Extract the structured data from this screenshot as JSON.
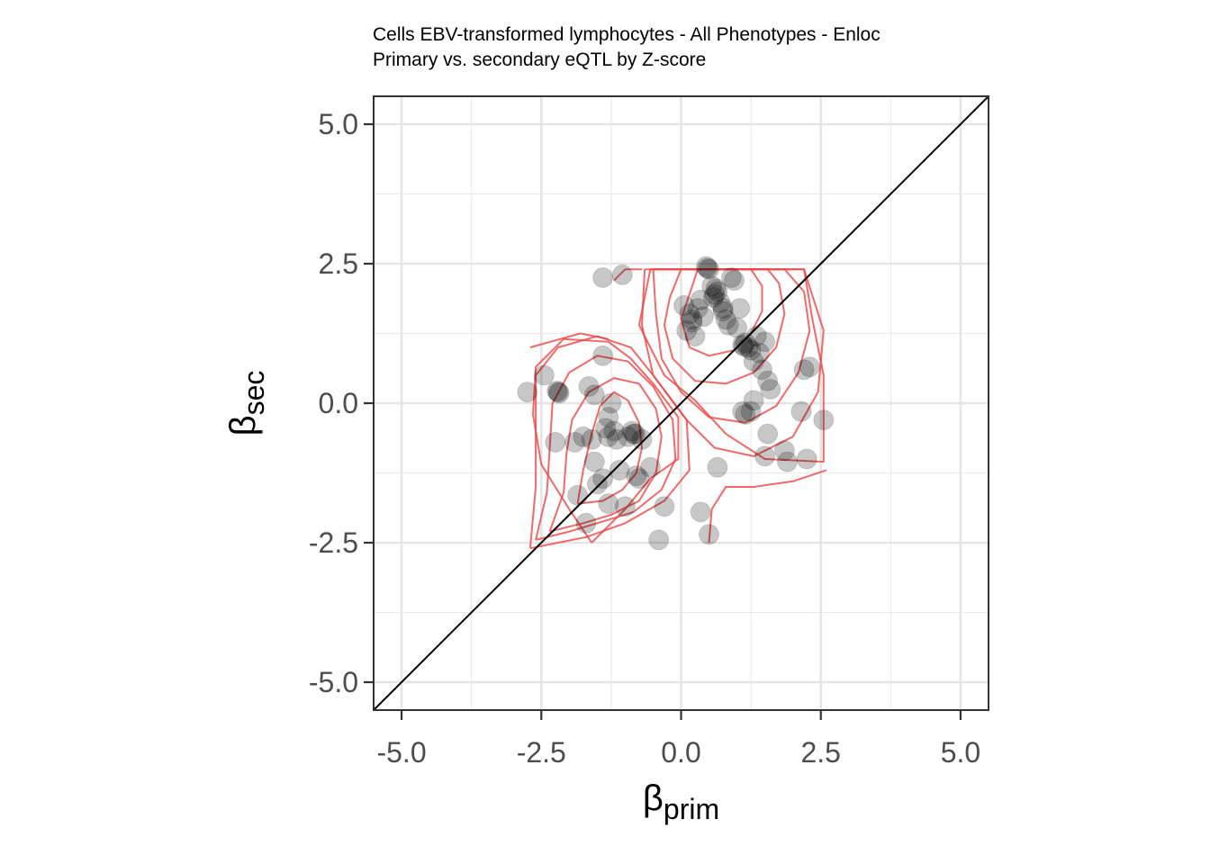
{
  "chart_data": {
    "type": "scatter",
    "title": "Cells EBV-transformed lymphocytes - All Phenotypes - Enloc",
    "subtitle": "Primary vs. secondary eQTL by Z-score",
    "xlabel": {
      "symbol": "β",
      "sub": "prim"
    },
    "ylabel": {
      "symbol": "β",
      "sub": "sec"
    },
    "xlim": [
      -5.5,
      5.5
    ],
    "ylim": [
      -5.5,
      5.5
    ],
    "x_ticks": [
      -5.0,
      -2.5,
      0.0,
      2.5,
      5.0
    ],
    "y_ticks": [
      -5.0,
      -2.5,
      0.0,
      2.5,
      5.0
    ],
    "x_tick_labels": [
      "-5.0",
      "-2.5",
      "0.0",
      "2.5",
      "5.0"
    ],
    "y_tick_labels": [
      "-5.0",
      "-2.5",
      "0.0",
      "2.5",
      "5.0"
    ],
    "grid": true,
    "reference_line": {
      "slope": 1,
      "intercept": 0,
      "color": "#000000"
    },
    "point_color": "#000000",
    "point_alpha": 0.22,
    "contour_color": "#ee4444",
    "points": [
      [
        -2.75,
        0.2
      ],
      [
        -2.45,
        0.5
      ],
      [
        -2.2,
        0.2
      ],
      [
        -2.18,
        0.18
      ],
      [
        -2.22,
        0.22
      ],
      [
        -2.25,
        -0.7
      ],
      [
        -1.85,
        -1.65
      ],
      [
        -1.9,
        -0.7
      ],
      [
        -1.75,
        -0.6
      ],
      [
        -1.7,
        -2.15
      ],
      [
        -1.65,
        0.3
      ],
      [
        -1.55,
        0.15
      ],
      [
        -1.6,
        -0.65
      ],
      [
        -1.55,
        -1.05
      ],
      [
        -1.4,
        0.85
      ],
      [
        -1.5,
        -1.45
      ],
      [
        -1.4,
        -1.35
      ],
      [
        -1.35,
        -0.45
      ],
      [
        -1.3,
        -1.8
      ],
      [
        -1.3,
        -0.6
      ],
      [
        -1.2,
        -0.5
      ],
      [
        -1.15,
        -0.65
      ],
      [
        -1.1,
        -1.2
      ],
      [
        -1.0,
        -1.85
      ],
      [
        -0.95,
        -0.6
      ],
      [
        -0.85,
        -0.55
      ],
      [
        -0.82,
        -0.55
      ],
      [
        -0.88,
        -0.5
      ],
      [
        -0.8,
        -1.3
      ],
      [
        -0.75,
        -1.35
      ],
      [
        -0.7,
        -0.65
      ],
      [
        -0.55,
        -1.15
      ],
      [
        -0.3,
        -1.85
      ],
      [
        -0.4,
        -2.45
      ],
      [
        -1.4,
        2.25
      ],
      [
        -1.05,
        2.3
      ],
      [
        -1.3,
        -0.25
      ],
      [
        -1.25,
        0.0
      ],
      [
        0.05,
        1.75
      ],
      [
        0.15,
        1.6
      ],
      [
        0.2,
        1.45
      ],
      [
        0.1,
        1.3
      ],
      [
        0.25,
        1.2
      ],
      [
        0.35,
        1.85
      ],
      [
        0.4,
        1.55
      ],
      [
        0.45,
        2.45
      ],
      [
        0.47,
        2.42
      ],
      [
        0.5,
        2.4
      ],
      [
        0.55,
        2.1
      ],
      [
        0.6,
        1.95
      ],
      [
        0.62,
        2.05
      ],
      [
        0.58,
        1.9
      ],
      [
        0.65,
        2.0
      ],
      [
        0.7,
        1.8
      ],
      [
        0.75,
        1.65
      ],
      [
        0.8,
        1.5
      ],
      [
        0.85,
        1.4
      ],
      [
        0.9,
        2.25
      ],
      [
        0.95,
        2.2
      ],
      [
        1.0,
        1.35
      ],
      [
        1.05,
        1.7
      ],
      [
        1.1,
        1.05
      ],
      [
        1.12,
        1.02
      ],
      [
        1.15,
        1.08
      ],
      [
        1.2,
        1.0
      ],
      [
        1.25,
        0.95
      ],
      [
        1.3,
        0.75
      ],
      [
        1.35,
        1.2
      ],
      [
        1.4,
        0.9
      ],
      [
        1.45,
        0.6
      ],
      [
        1.5,
        1.1
      ],
      [
        1.55,
        0.4
      ],
      [
        1.6,
        0.25
      ],
      [
        1.3,
        0.05
      ],
      [
        1.1,
        -0.15
      ],
      [
        1.15,
        -0.2
      ],
      [
        1.25,
        -0.15
      ],
      [
        1.55,
        -0.55
      ],
      [
        1.5,
        -0.95
      ],
      [
        1.85,
        -0.85
      ],
      [
        1.9,
        -1.05
      ],
      [
        2.15,
        -0.15
      ],
      [
        2.2,
        0.6
      ],
      [
        2.3,
        0.65
      ],
      [
        2.25,
        -1.0
      ],
      [
        2.55,
        -0.3
      ],
      [
        0.65,
        -1.15
      ],
      [
        0.35,
        -1.95
      ],
      [
        0.5,
        -2.35
      ],
      [
        0.75,
        1.7
      ],
      [
        0.3,
        1.7
      ],
      [
        0.2,
        1.5
      ]
    ],
    "contours": [
      [
        [
          -1.85,
          -1.8
        ],
        [
          -1.75,
          -1.2
        ],
        [
          -1.6,
          -0.55
        ],
        [
          -1.45,
          -0.05
        ],
        [
          -1.2,
          0.2
        ],
        [
          -0.95,
          0.05
        ],
        [
          -0.75,
          -0.35
        ],
        [
          -0.7,
          -0.8
        ],
        [
          -0.8,
          -1.25
        ],
        [
          -1.05,
          -1.55
        ],
        [
          -1.4,
          -1.75
        ],
        [
          -1.85,
          -1.8
        ]
      ],
      [
        [
          -2.35,
          -2.3
        ],
        [
          -2.1,
          -1.6
        ],
        [
          -2.05,
          -0.9
        ],
        [
          -1.95,
          -0.3
        ],
        [
          -1.65,
          0.2
        ],
        [
          -1.2,
          0.45
        ],
        [
          -0.75,
          0.35
        ],
        [
          -0.45,
          -0.1
        ],
        [
          -0.35,
          -0.6
        ],
        [
          -0.45,
          -1.25
        ],
        [
          -0.75,
          -1.75
        ],
        [
          -1.25,
          -2.0
        ],
        [
          -1.75,
          -2.15
        ],
        [
          -2.35,
          -2.3
        ]
      ],
      [
        [
          -2.6,
          -2.45
        ],
        [
          -2.4,
          -1.6
        ],
        [
          -2.35,
          -0.8
        ],
        [
          -2.3,
          0.0
        ],
        [
          -2.0,
          0.55
        ],
        [
          -1.5,
          0.85
        ],
        [
          -0.95,
          0.75
        ],
        [
          -0.5,
          0.3
        ],
        [
          -0.15,
          -0.3
        ],
        [
          -0.1,
          -1.0
        ],
        [
          -0.35,
          -1.55
        ],
        [
          -0.85,
          -1.95
        ],
        [
          -1.5,
          -2.15
        ],
        [
          -2.0,
          -2.3
        ],
        [
          -2.6,
          -2.45
        ]
      ],
      [
        [
          -2.7,
          -2.6
        ],
        [
          -2.6,
          -1.5
        ],
        [
          -2.6,
          -0.4
        ],
        [
          -2.6,
          0.5
        ],
        [
          -2.2,
          1.0
        ],
        [
          -1.5,
          1.2
        ],
        [
          -0.9,
          1.0
        ],
        [
          -0.5,
          0.5
        ],
        [
          0.1,
          -0.3
        ],
        [
          0.15,
          -1.2
        ],
        [
          -0.3,
          -1.75
        ],
        [
          -1.0,
          -2.15
        ],
        [
          -1.7,
          -2.4
        ],
        [
          -2.2,
          -2.5
        ],
        [
          -2.7,
          -2.6
        ]
      ],
      [
        [
          -1.6,
          -2.5
        ],
        [
          -2.0,
          -1.9
        ],
        [
          -2.5,
          -1.1
        ],
        [
          -2.65,
          -0.2
        ],
        [
          -2.6,
          0.65
        ],
        [
          -2.1,
          1.15
        ],
        [
          -1.3,
          1.1
        ],
        [
          -0.9,
          0.8
        ],
        [
          -0.5,
          0.35
        ],
        [
          -0.05,
          -0.25
        ],
        [
          -0.05,
          -1.0
        ],
        [
          -0.55,
          -1.35
        ],
        [
          -1.0,
          -1.9
        ],
        [
          -1.6,
          -2.5
        ]
      ],
      [
        [
          0.3,
          2.4
        ],
        [
          0.15,
          1.95
        ],
        [
          0.0,
          1.5
        ],
        [
          0.15,
          1.0
        ],
        [
          0.5,
          0.85
        ],
        [
          0.95,
          0.95
        ],
        [
          1.25,
          1.25
        ],
        [
          1.45,
          1.65
        ],
        [
          1.45,
          2.1
        ],
        [
          1.25,
          2.4
        ],
        [
          0.3,
          2.4
        ]
      ],
      [
        [
          0.0,
          2.4
        ],
        [
          -0.2,
          1.9
        ],
        [
          -0.3,
          1.4
        ],
        [
          -0.15,
          0.8
        ],
        [
          0.25,
          0.4
        ],
        [
          0.8,
          0.35
        ],
        [
          1.3,
          0.55
        ],
        [
          1.7,
          1.0
        ],
        [
          1.85,
          1.6
        ],
        [
          1.75,
          2.15
        ],
        [
          1.55,
          2.4
        ],
        [
          0.0,
          2.4
        ]
      ],
      [
        [
          -0.5,
          2.4
        ],
        [
          -0.45,
          1.6
        ],
        [
          -0.35,
          0.8
        ],
        [
          0.0,
          0.2
        ],
        [
          0.5,
          -0.25
        ],
        [
          1.15,
          -0.35
        ],
        [
          1.7,
          -0.05
        ],
        [
          2.1,
          0.55
        ],
        [
          2.3,
          1.3
        ],
        [
          2.2,
          2.0
        ],
        [
          1.85,
          2.4
        ],
        [
          -0.5,
          2.4
        ]
      ],
      [
        [
          -0.65,
          2.4
        ],
        [
          -0.7,
          1.4
        ],
        [
          -0.5,
          0.5
        ],
        [
          0.1,
          -0.3
        ],
        [
          0.6,
          -0.8
        ],
        [
          1.3,
          -0.95
        ],
        [
          2.0,
          -0.6
        ],
        [
          2.45,
          0.2
        ],
        [
          2.55,
          1.3
        ],
        [
          2.2,
          2.4
        ],
        [
          -0.65,
          2.4
        ]
      ],
      [
        [
          -0.55,
          2.4
        ],
        [
          -0.75,
          1.4
        ],
        [
          -0.3,
          0.5
        ],
        [
          0.25,
          0.05
        ],
        [
          0.8,
          -0.55
        ],
        [
          1.5,
          -1.0
        ],
        [
          2.55,
          -1.05
        ],
        [
          2.55,
          0.5
        ],
        [
          2.35,
          1.5
        ],
        [
          2.2,
          2.4
        ],
        [
          -0.55,
          2.4
        ]
      ],
      [
        [
          -1.2,
          2.2
        ],
        [
          -1.0,
          2.4
        ],
        [
          -0.7,
          2.4
        ]
      ],
      [
        [
          -2.7,
          1.0
        ],
        [
          -1.8,
          1.25
        ],
        [
          -1.3,
          1.15
        ]
      ],
      [
        [
          0.5,
          -2.5
        ],
        [
          0.55,
          -1.9
        ],
        [
          0.8,
          -1.5
        ],
        [
          1.3,
          -1.5
        ],
        [
          2.0,
          -1.4
        ],
        [
          2.6,
          -1.2
        ]
      ]
    ]
  }
}
